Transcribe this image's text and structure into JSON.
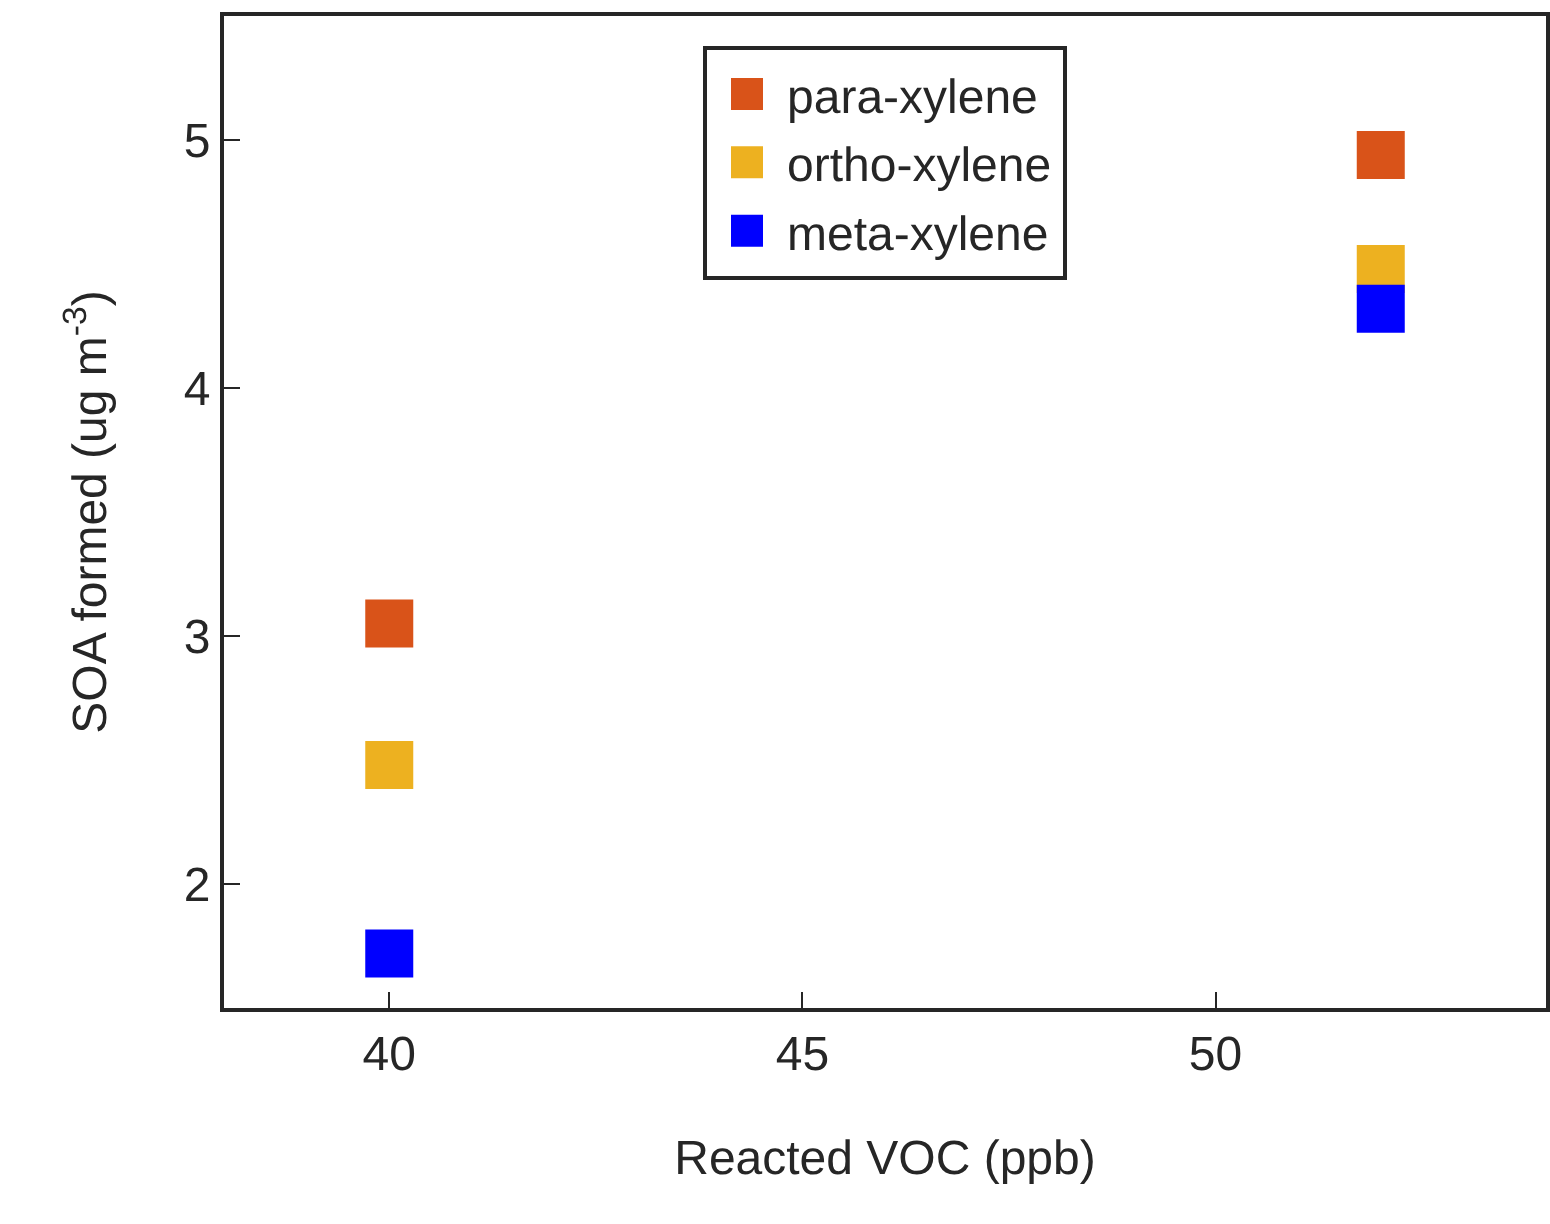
{
  "chart_data": {
    "type": "scatter",
    "xlabel": "Reacted VOC (ppb)",
    "ylabel": "SOA formed (ug m$^{-3}$)",
    "x": [
      40,
      52
    ],
    "series": [
      {
        "name": "para-xylene",
        "color": "#d95319",
        "values": [
          3.05,
          4.94
        ]
      },
      {
        "name": "ortho-xylene",
        "color": "#edb120",
        "values": [
          2.48,
          4.48
        ]
      },
      {
        "name": "meta-xylene",
        "color": "#0000ff",
        "values": [
          1.72,
          4.32
        ]
      }
    ],
    "xlim": [
      38,
      54
    ],
    "xticks": [
      40,
      45,
      50
    ],
    "ylim": [
      1.5,
      5.5
    ],
    "yticks": [
      2,
      3,
      4,
      5
    ],
    "grid": false,
    "legend": "top",
    "marker": "square"
  }
}
